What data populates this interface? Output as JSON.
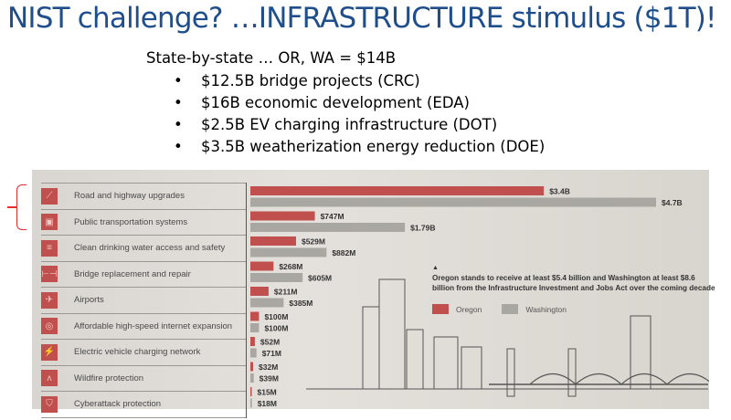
{
  "slide": {
    "title": "NIST challenge?  …INFRASTRUCTURE stimulus ($1T)!",
    "subtitle": "State-by-state … OR, WA = $14B",
    "bullets": [
      "$12.5B bridge projects (CRC)",
      "$16B economic development (EDA)",
      "$2.5B EV charging infrastructure (DOT)",
      "$3.5B weatherization energy reduction (DOE)"
    ]
  },
  "colors": {
    "oregon": "#c0504d",
    "washington": "#a9a7a2",
    "title": "#1f4e8c",
    "bracket": "#e03030"
  },
  "chart_data": {
    "type": "bar",
    "orientation": "horizontal",
    "categories": [
      "Road and highway upgrades",
      "Public transportation systems",
      "Clean drinking water access and safety",
      "Bridge replacement and repair",
      "Airports",
      "Affordable high-speed internet expansion",
      "Electric vehicle charging network",
      "Wildfire protection",
      "Cyberattack protection"
    ],
    "category_icons": [
      "road-icon",
      "bus-icon",
      "water-icon",
      "bridge-icon",
      "airplane-icon",
      "wifi-icon",
      "ev-charger-icon",
      "fire-icon",
      "shield-icon"
    ],
    "units": "millions USD",
    "series": [
      {
        "name": "Oregon",
        "values": [
          3400,
          747,
          529,
          268,
          211,
          100,
          52,
          32,
          15
        ],
        "labels": [
          "$3.4B",
          "$747M",
          "$529M",
          "$268M",
          "$211M",
          "$100M",
          "$52M",
          "$32M",
          "$15M"
        ]
      },
      {
        "name": "Washington",
        "values": [
          4700,
          1790,
          882,
          605,
          385,
          100,
          71,
          39,
          18
        ],
        "labels": [
          "$4.7B",
          "$1.79B",
          "$882M",
          "$605M",
          "$385M",
          "$100M",
          "$71M",
          "$39M",
          "$18M"
        ]
      }
    ],
    "annotation": "Oregon stands to receive at least $5.4 billion and Washington at least $8.6 billion from the Infrastructure Investment and Jobs Act over the coming decade",
    "legend_position": "middle-right",
    "grid": false
  }
}
